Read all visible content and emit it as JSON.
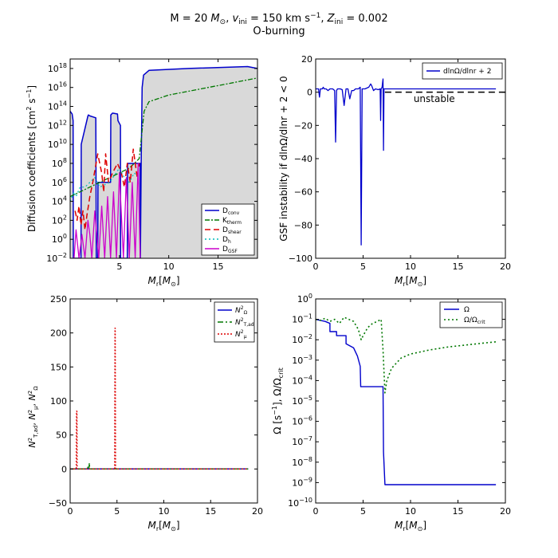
{
  "figure": {
    "title_line1": "M = 20 M⊙, v_ini = 150 km s⁻¹, Z_ini = 0.002",
    "title_line2": "O-burning"
  },
  "colors": {
    "blue": "#0000cc",
    "green": "#007700",
    "red": "#dd0000",
    "cyan": "#00bbbb",
    "magenta": "#cc00cc",
    "shade": "#d9d9d9",
    "axis": "#000000"
  },
  "chart_data": [
    {
      "id": "diffusion",
      "type": "line",
      "yscale": "log",
      "xlabel": "M_r[M⊙]",
      "ylabel": "Diffusion coefficients [cm² s⁻¹]",
      "xlim": [
        0,
        19
      ],
      "ylim_exp": [
        -2,
        19
      ],
      "xticks": [
        5,
        10,
        15
      ],
      "yticks_exp": [
        -2,
        0,
        2,
        4,
        6,
        8,
        10,
        12,
        14,
        16,
        18
      ],
      "legend_position": "bottom-right",
      "series": [
        {
          "name": "D_conv",
          "label": "Dconv",
          "color_key": "blue",
          "dash": "",
          "x": [
            0,
            0.2,
            0.3,
            0.32,
            1.1,
            1.12,
            1.8,
            1.85,
            2.0,
            2.6,
            2.65,
            2.8,
            2.82,
            4.1,
            4.12,
            4.3,
            4.8,
            4.85,
            5.1,
            5.12,
            5.8,
            5.82,
            7.1,
            7.12,
            7.2,
            7.3,
            7.45,
            8,
            12,
            18,
            19
          ],
          "log_y": [
            13.5,
            13.2,
            12.5,
            -2,
            -2,
            10,
            13.0,
            13.1,
            13.0,
            12.8,
            -2,
            -2,
            6.0,
            6.0,
            13.1,
            13.3,
            13.2,
            12.5,
            12.0,
            -2,
            -2,
            8.0,
            8.0,
            -2,
            8.0,
            16.0,
            17.3,
            17.8,
            18.0,
            18.2,
            18.0
          ]
        },
        {
          "name": "K_therm",
          "label": "Ktherm",
          "color_key": "green",
          "dash": "6,2,2,2",
          "x": [
            0,
            1,
            2,
            3,
            4,
            5,
            6,
            7,
            7.5,
            8,
            10,
            12,
            14,
            16,
            18,
            19
          ],
          "log_y": [
            4.5,
            5.0,
            5.5,
            6.0,
            6.5,
            7.0,
            7.5,
            8.5,
            13.5,
            14.5,
            15.2,
            15.6,
            16.0,
            16.4,
            16.8,
            17.0
          ]
        },
        {
          "name": "D_shear",
          "label": "Dshear",
          "color_key": "red",
          "dash": "7,4",
          "x": [
            0.5,
            0.7,
            0.9,
            1.1,
            1.3,
            1.5,
            1.7,
            2.0,
            2.3,
            2.8,
            3.2,
            3.4,
            3.6,
            3.9,
            4.3,
            4.8,
            5.2,
            5.5,
            5.8,
            6.1,
            6.4,
            6.8,
            7.0
          ],
          "log_y": [
            3.0,
            2.0,
            3.5,
            1.5,
            3.0,
            1.0,
            2.5,
            4.5,
            6.0,
            9.0,
            7.0,
            5.0,
            9.0,
            6.0,
            7.0,
            8.0,
            7.0,
            5.5,
            8.0,
            6.0,
            9.5,
            6.5,
            8.0
          ]
        },
        {
          "name": "D_h",
          "label": "Dh",
          "color_key": "cyan",
          "dash": "2,3",
          "x": [
            0,
            0.4,
            0.6,
            1.0,
            1.5,
            2.0,
            2.5,
            3.0,
            4.0,
            5.0,
            5.5,
            6.0,
            6.5,
            7.0
          ],
          "log_y": [
            4.0,
            5.0,
            4.5,
            5.5,
            5.5,
            6.0,
            6.5,
            5.5,
            6.0,
            7.5,
            6.5,
            6.0,
            7.0,
            6.5
          ]
        },
        {
          "name": "D_GSF",
          "label": "DGSF",
          "color_key": "magenta",
          "dash": "",
          "x": [
            0.4,
            0.6,
            0.9,
            1.2,
            1.5,
            1.8,
            2.0,
            2.2,
            2.5,
            2.9,
            3.2,
            3.5,
            3.8,
            4.1,
            4.4,
            4.7,
            5.0,
            5.4,
            5.7,
            6.0,
            6.3,
            6.6,
            6.9,
            7.1
          ],
          "log_y": [
            -2,
            1.0,
            -2,
            0.5,
            -2,
            2.0,
            0.5,
            -2,
            3.0,
            -2,
            3.5,
            -2,
            4.5,
            -2,
            5.0,
            -2,
            7.0,
            -2,
            6.5,
            -2,
            6.0,
            -2,
            8.0,
            -2
          ]
        }
      ]
    },
    {
      "id": "gsf",
      "type": "line",
      "xlabel": "M_r[M⊙]",
      "ylabel": "GSF instability if dlnΩ/dlnr + 2 < 0",
      "xlim": [
        0,
        20
      ],
      "ylim": [
        -100,
        20
      ],
      "xticks": [
        0,
        5,
        10,
        15,
        20
      ],
      "yticks": [
        -100,
        -80,
        -60,
        -40,
        -20,
        0,
        20
      ],
      "legend_position": "top-right",
      "annotation": "unstable",
      "threshold_y": 0,
      "series": [
        {
          "name": "dlnΩ/dlnr + 2",
          "label": "dlnΩ/dlnr + 2",
          "color_key": "blue",
          "x": [
            0,
            0.3,
            0.4,
            0.5,
            0.7,
            0.8,
            0.9,
            1.1,
            1.3,
            1.5,
            1.8,
            2.0,
            2.1,
            2.2,
            2.3,
            2.6,
            2.8,
            3.0,
            3.2,
            3.4,
            3.6,
            3.8,
            4.0,
            4.2,
            4.5,
            4.7,
            4.8,
            4.9,
            5.2,
            5.6,
            5.8,
            5.9,
            6.1,
            6.3,
            6.6,
            6.8,
            6.85,
            6.9,
            7.0,
            7.1,
            7.15,
            7.2,
            7.25,
            7.3,
            8,
            12,
            19
          ],
          "y": [
            2,
            2,
            -3,
            2,
            2,
            3,
            2,
            2,
            1,
            2,
            2,
            1,
            -30,
            1,
            2,
            2,
            1.5,
            -8,
            2,
            2,
            -4,
            1,
            1,
            2,
            2,
            3,
            -92,
            2,
            2,
            3,
            5,
            4,
            1,
            2,
            1.5,
            2,
            -17,
            2,
            3,
            8,
            -35,
            2,
            2,
            2,
            2,
            2,
            2
          ]
        }
      ]
    },
    {
      "id": "brunt",
      "type": "line",
      "xlabel": "M_r[M⊙]",
      "ylabel": "N²_T,ad, N²_μ, N²_Ω",
      "xlim": [
        0,
        20
      ],
      "ylim": [
        -50,
        250
      ],
      "xticks": [
        0,
        5,
        10,
        15,
        20
      ],
      "yticks": [
        -50,
        0,
        50,
        100,
        150,
        200,
        250
      ],
      "legend_position": "top-right",
      "series": [
        {
          "name": "N²_Ω",
          "label": "N",
          "sup": "2",
          "sub": "Ω",
          "color_key": "blue",
          "dash": "",
          "x": [
            0,
            19
          ],
          "y": [
            0,
            0
          ]
        },
        {
          "name": "N²_T,ad",
          "label": "N",
          "sup": "2",
          "sub": "T,ad",
          "color_key": "green",
          "dash": "7,3,2,3",
          "x": [
            0,
            1.0,
            1.02,
            1.04,
            1.06,
            1.8,
            1.9,
            2.0,
            2.05,
            2.1,
            2.2,
            19
          ],
          "y": [
            0,
            0,
            2,
            0,
            0,
            0,
            3,
            0,
            9,
            0,
            0,
            0
          ]
        },
        {
          "name": "N²_μ",
          "label": "N",
          "sup": "2",
          "sub": "μ",
          "color_key": "red",
          "dash": "2,2",
          "x": [
            0,
            0.65,
            0.68,
            0.72,
            0.75,
            4.75,
            4.78,
            4.82,
            4.85,
            19
          ],
          "y": [
            0,
            0,
            85,
            85,
            0,
            0,
            207,
            207,
            0,
            0
          ]
        }
      ]
    },
    {
      "id": "omega",
      "type": "line",
      "yscale": "log",
      "xlabel": "M_r[M⊙]",
      "ylabel": "Ω [s⁻¹], Ω/Ω_crit",
      "xlim": [
        0,
        20
      ],
      "ylim_exp": [
        -10,
        0
      ],
      "xticks": [
        0,
        5,
        10,
        15,
        20
      ],
      "yticks_exp": [
        -10,
        -9,
        -8,
        -7,
        -6,
        -5,
        -4,
        -3,
        -2,
        -1,
        0
      ],
      "legend_position": "top-right",
      "series": [
        {
          "name": "Ω",
          "label": "Ω",
          "color_key": "blue",
          "dash": "",
          "x": [
            0,
            0.5,
            1,
            1.5,
            1.5,
            2.2,
            2.2,
            3.2,
            3.2,
            4.0,
            4.4,
            4.7,
            4.75,
            7.1,
            7.15,
            7.3,
            19
          ],
          "log_y": [
            -1.0,
            -1.05,
            -1.1,
            -1.2,
            -1.6,
            -1.6,
            -1.8,
            -1.8,
            -2.2,
            -2.4,
            -2.8,
            -3.3,
            -4.3,
            -4.3,
            -7.5,
            -9.1,
            -9.1
          ]
        },
        {
          "name": "Ω/Ω_crit",
          "label": "Ω/Ωcrit",
          "color_key": "green",
          "dash": "2,3",
          "x": [
            0,
            0.5,
            1.0,
            1.5,
            2.0,
            2.5,
            3.0,
            3.5,
            4.0,
            4.5,
            4.8,
            5.0,
            5.5,
            6.0,
            6.5,
            6.9,
            7.1,
            7.3,
            7.5,
            8,
            9,
            10,
            12,
            14,
            16,
            18,
            19
          ],
          "log_y": [
            -1.0,
            -1.05,
            -0.95,
            -1.1,
            -1.0,
            -1.2,
            -0.9,
            -1.0,
            -1.1,
            -1.5,
            -2.0,
            -1.8,
            -1.4,
            -1.2,
            -1.1,
            -1.0,
            -2.5,
            -4.6,
            -4.0,
            -3.4,
            -2.9,
            -2.7,
            -2.5,
            -2.35,
            -2.25,
            -2.15,
            -2.1
          ]
        }
      ]
    }
  ]
}
